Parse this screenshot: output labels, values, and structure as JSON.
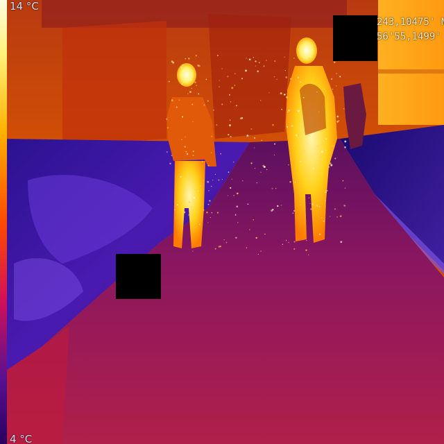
{
  "image": {
    "kind": "thermal camera frame",
    "palette": "iron",
    "colors": {
      "hot": "#fff27a",
      "warm": "#ff7a00",
      "mid": "#c8105a",
      "cool": "#3a1aa0",
      "cold": "#1a0840"
    }
  },
  "scale": {
    "max_label": "14 °C",
    "min_label": "4 °C"
  },
  "gps": {
    "lat": "243,10475' N",
    "lon": "56'55,1499' E"
  }
}
